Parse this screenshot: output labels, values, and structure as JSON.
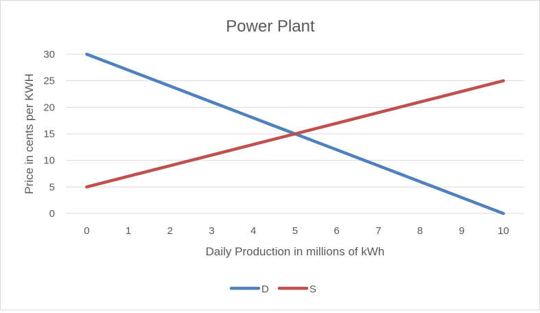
{
  "chart_data": {
    "type": "line",
    "title": "Power Plant",
    "xlabel": "Daily Production in millions of kWh",
    "ylabel": "Price in cents per KWH",
    "x": [
      0,
      1,
      2,
      3,
      4,
      5,
      6,
      7,
      8,
      9,
      10
    ],
    "ylim": [
      0,
      30
    ],
    "yticks": [
      0,
      5,
      10,
      15,
      20,
      25,
      30
    ],
    "grid": true,
    "legend_position": "bottom",
    "series": [
      {
        "name": "D",
        "color": "#4f81bd",
        "values": [
          30,
          27,
          24,
          21,
          18,
          15,
          12,
          9,
          6,
          3,
          0
        ]
      },
      {
        "name": "S",
        "color": "#c0504d",
        "values": [
          5,
          7,
          9,
          11,
          13,
          15,
          17,
          19,
          21,
          23,
          25
        ]
      }
    ]
  }
}
